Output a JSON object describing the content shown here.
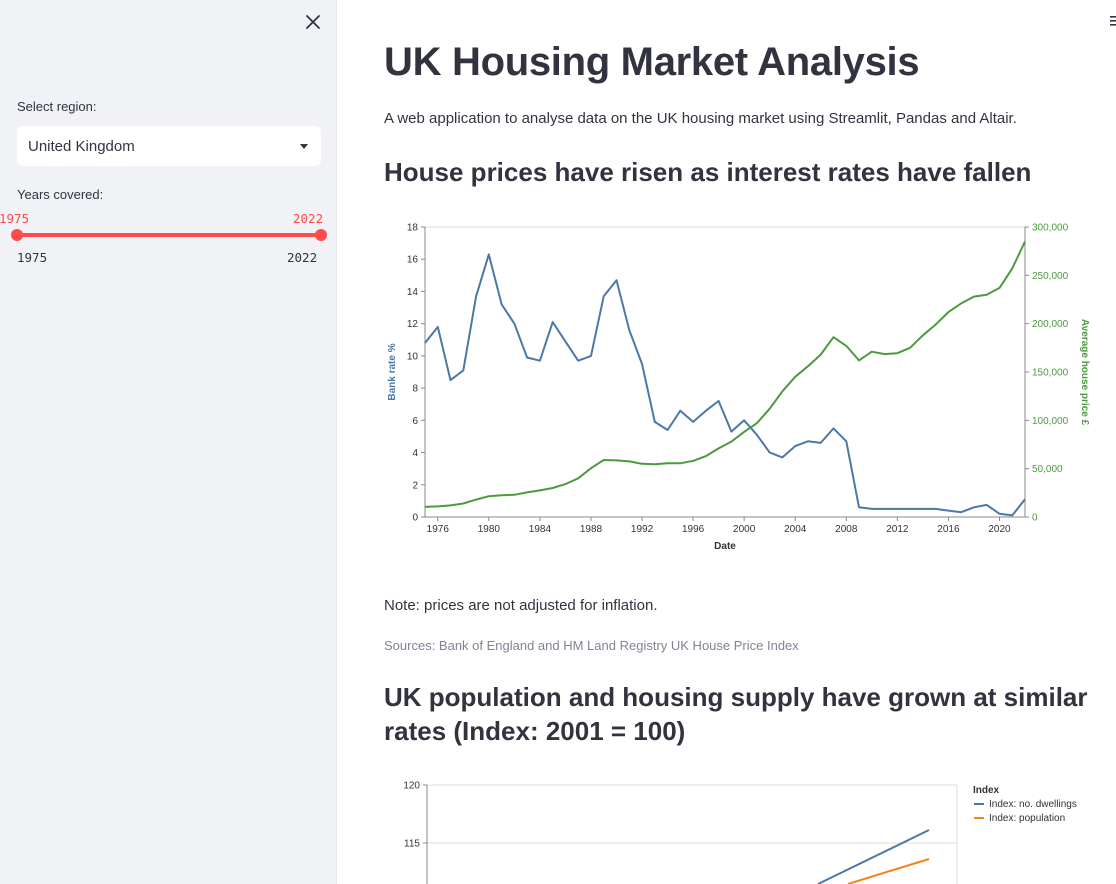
{
  "sidebar": {
    "region_label": "Select region:",
    "region_value": "United Kingdom",
    "years_label": "Years covered:",
    "slider_low": "1975",
    "slider_high": "2022",
    "slider_min": "1975",
    "slider_max": "2022"
  },
  "main": {
    "title": "UK Housing Market Analysis",
    "intro": "A web application to analyse data on the UK housing market using Streamlit, Pandas and Altair.",
    "section1_heading": "House prices have risen as interest rates have fallen",
    "note": "Note: prices are not adjusted for inflation.",
    "sources": "Sources: Bank of England and HM Land Registry UK House Price Index",
    "section2_heading_line1": "UK population and housing supply have grown at similar",
    "section2_heading_line2": "rates (Index: 2001 = 100)"
  },
  "colors": {
    "accent": "#ff4b4b",
    "bank_rate": "#4c78a8",
    "house_price": "#4c9a3f",
    "dwellings": "#4c78a8",
    "population": "#f58518"
  },
  "chart_data": [
    {
      "type": "line",
      "xlabel": "Date",
      "x_ticks": [
        "1976",
        "1980",
        "1984",
        "1988",
        "1992",
        "1996",
        "2000",
        "2004",
        "2008",
        "2012",
        "2016",
        "2020"
      ],
      "ylabel_left": "Bank rate %",
      "ylim_left": [
        0,
        18
      ],
      "y_ticks_left": [
        "0",
        "2",
        "4",
        "6",
        "8",
        "10",
        "12",
        "14",
        "16",
        "18"
      ],
      "ylabel_right": "Average house price £",
      "ylim_right": [
        0,
        300000
      ],
      "y_ticks_right": [
        "0",
        "50,000",
        "100,000",
        "150,000",
        "200,000",
        "250,000",
        "300,000"
      ],
      "x": [
        1975,
        1976,
        1977,
        1978,
        1979,
        1980,
        1981,
        1982,
        1983,
        1984,
        1985,
        1986,
        1987,
        1988,
        1989,
        1990,
        1991,
        1992,
        1993,
        1994,
        1995,
        1996,
        1997,
        1998,
        1999,
        2000,
        2001,
        2002,
        2003,
        2004,
        2005,
        2006,
        2007,
        2008,
        2009,
        2010,
        2011,
        2012,
        2013,
        2014,
        2015,
        2016,
        2017,
        2018,
        2019,
        2020,
        2021,
        2022
      ],
      "series": [
        {
          "name": "Bank rate %",
          "axis": "left",
          "values": [
            10.8,
            11.8,
            8.5,
            9.1,
            13.7,
            16.3,
            13.2,
            12.0,
            9.9,
            9.7,
            12.1,
            10.9,
            9.7,
            10.0,
            13.7,
            14.7,
            11.6,
            9.5,
            5.9,
            5.4,
            6.6,
            5.9,
            6.6,
            7.2,
            5.3,
            6.0,
            5.1,
            4.0,
            3.7,
            4.4,
            4.7,
            4.6,
            5.5,
            4.7,
            0.6,
            0.5,
            0.5,
            0.5,
            0.5,
            0.5,
            0.5,
            0.4,
            0.3,
            0.6,
            0.75,
            0.2,
            0.1,
            1.1
          ]
        },
        {
          "name": "Average house price £",
          "axis": "right",
          "values": [
            10500,
            11000,
            12000,
            14000,
            18000,
            21500,
            22500,
            23000,
            25500,
            27500,
            30000,
            34000,
            40000,
            50500,
            59000,
            58500,
            57500,
            55000,
            54500,
            55500,
            55500,
            58000,
            63000,
            71000,
            78000,
            88000,
            97000,
            112000,
            130000,
            145000,
            156000,
            168000,
            186000,
            177000,
            162000,
            171000,
            168500,
            169500,
            175000,
            188000,
            199000,
            212000,
            221000,
            228000,
            230000,
            237000,
            257000,
            285000
          ]
        }
      ]
    },
    {
      "type": "line",
      "legend_title": "Index",
      "legend_position": "right",
      "y_ticks": [
        "115",
        "120"
      ],
      "series": [
        {
          "name": "Index: no. dwellings"
        },
        {
          "name": "Index: population"
        }
      ]
    }
  ]
}
